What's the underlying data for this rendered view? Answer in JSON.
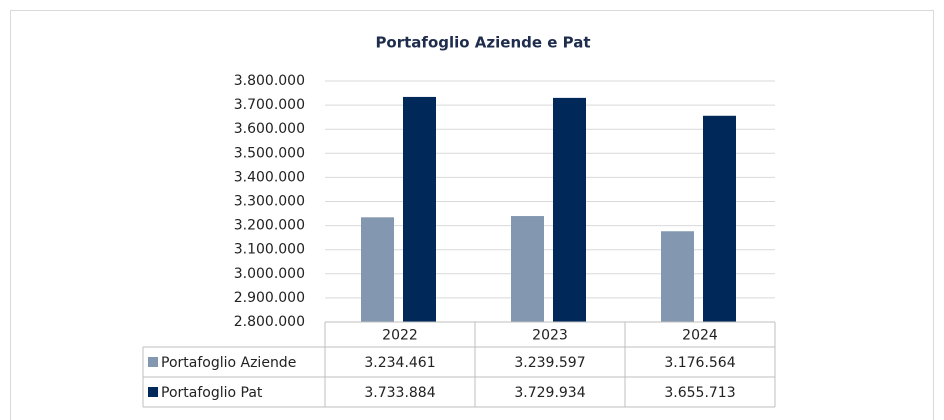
{
  "chart_data": {
    "type": "bar",
    "title": "Portafoglio Aziende e Pat",
    "categories": [
      "2022",
      "2023",
      "2024"
    ],
    "series": [
      {
        "name": "Portafoglio Aziende",
        "color": "#8497b0",
        "values": [
          3234461,
          3239597,
          3176564
        ],
        "value_labels": [
          "3.234.461",
          "3.239.597",
          "3.176.564"
        ]
      },
      {
        "name": "Portafoglio Pat",
        "color": "#002858",
        "values": [
          3733884,
          3729934,
          3655713
        ],
        "value_labels": [
          "3.733.884",
          "3.729.934",
          "3.655.713"
        ]
      }
    ],
    "ylim": [
      2800000,
      3800000
    ],
    "yticks": [
      {
        "value": 2800000,
        "label": "2.800.000"
      },
      {
        "value": 2900000,
        "label": "2.900.000"
      },
      {
        "value": 3000000,
        "label": "3.000.000"
      },
      {
        "value": 3100000,
        "label": "3.100.000"
      },
      {
        "value": 3200000,
        "label": "3.200.000"
      },
      {
        "value": 3300000,
        "label": "3.300.000"
      },
      {
        "value": 3400000,
        "label": "3.400.000"
      },
      {
        "value": 3500000,
        "label": "3.500.000"
      },
      {
        "value": 3600000,
        "label": "3.600.000"
      },
      {
        "value": 3700000,
        "label": "3.700.000"
      },
      {
        "value": 3800000,
        "label": "3.800.000"
      }
    ],
    "grid": true
  }
}
